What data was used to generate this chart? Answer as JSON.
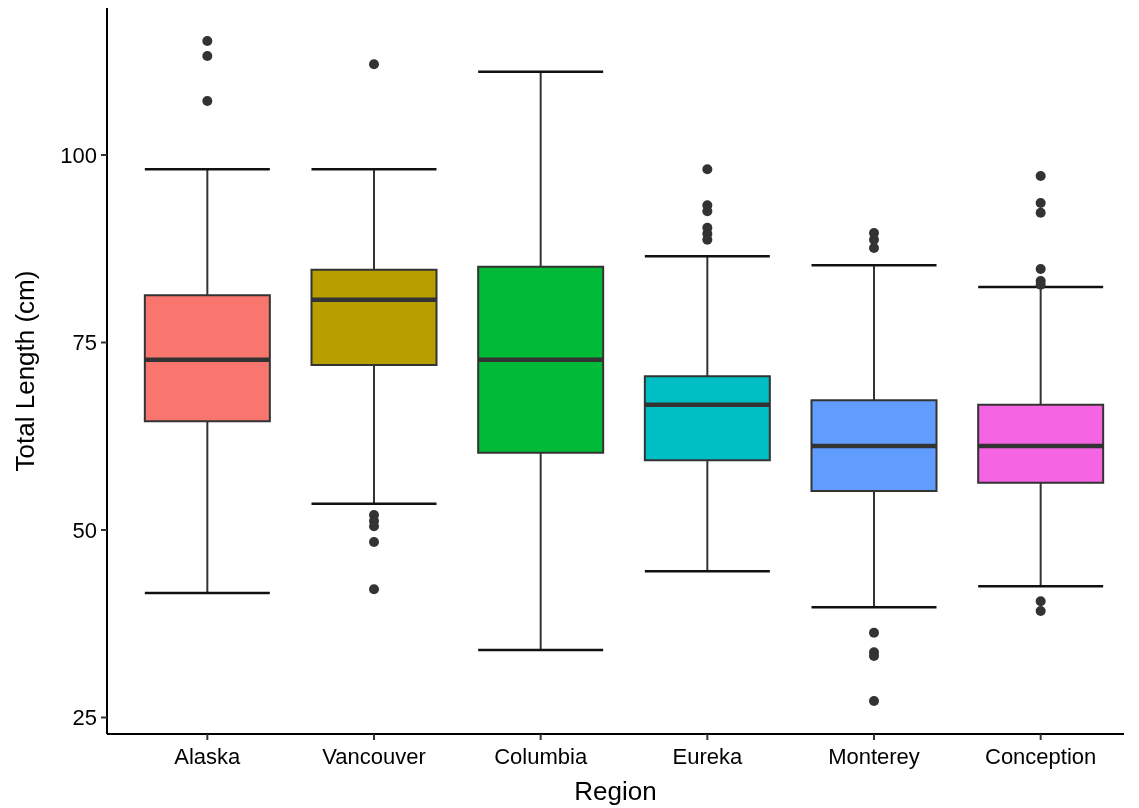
{
  "chart_data": {
    "type": "box",
    "xlabel": "Region",
    "ylabel": "Total Length (cm)",
    "categories": [
      "Alaska",
      "Vancouver",
      "Columbia",
      "Eureka",
      "Monterey",
      "Conception"
    ],
    "colors": [
      "#f8766d",
      "#b79f00",
      "#00ba38",
      "#00bfc4",
      "#619cff",
      "#f564e3"
    ],
    "boxes": [
      {
        "low": 41.6,
        "q1": 64.5,
        "median": 72.7,
        "q3": 81.3,
        "high": 98.1,
        "outliers": [
          115.2,
          113.2,
          107.2
        ]
      },
      {
        "low": 53.5,
        "q1": 72,
        "median": 80.7,
        "q3": 84.7,
        "high": 98.1,
        "outliers": [
          112.1,
          52,
          51.2,
          50.5,
          48.4,
          42.1
        ]
      },
      {
        "low": 34,
        "q1": 60.3,
        "median": 72.7,
        "q3": 85.1,
        "high": 111.1
      },
      {
        "low": 44.5,
        "q1": 59.3,
        "median": 66.7,
        "q3": 70.5,
        "high": 86.5,
        "outliers": [
          98.1,
          93.3,
          92.5,
          90.3,
          89.5,
          88.7
        ]
      },
      {
        "low": 39.7,
        "q1": 55.2,
        "median": 61.2,
        "q3": 67.3,
        "high": 85.3,
        "outliers": [
          89.6,
          88.7,
          87.6,
          36.3,
          33.7,
          33.2,
          27.2
        ]
      },
      {
        "low": 42.5,
        "q1": 56.3,
        "median": 61.2,
        "q3": 66.7,
        "high": 82.4,
        "outliers": [
          97.2,
          93.6,
          92.3,
          84.8,
          83.2,
          82.7,
          40.5,
          39.2
        ]
      }
    ],
    "ylim": [
      22.8,
      119.6
    ],
    "yticks": [
      25,
      50,
      75,
      100
    ]
  }
}
